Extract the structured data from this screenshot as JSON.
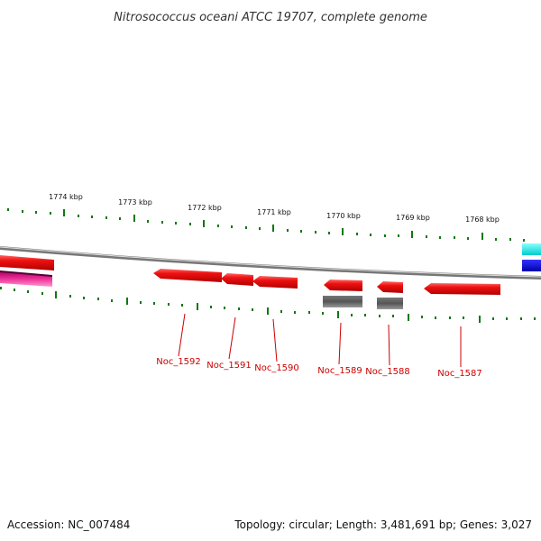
{
  "title": "Nitrosococcus oceani ATCC 19707, complete genome",
  "footer": {
    "accession": "Accession: NC_007484",
    "summary": "Topology: circular; Length: 3,481,691 bp; Genes: 3,027"
  },
  "ruler": {
    "labels": [
      "1774 kbp",
      "1773 kbp",
      "1772 kbp",
      "1771 kbp",
      "1770 kbp",
      "1769 kbp",
      "1768 kbp"
    ]
  },
  "genes": [
    {
      "label": "Noc_1592",
      "strand": "reverse"
    },
    {
      "label": "Noc_1591",
      "strand": "reverse"
    },
    {
      "label": "Noc_1590",
      "strand": "reverse"
    },
    {
      "label": "Noc_1589",
      "strand": "reverse"
    },
    {
      "label": "Noc_1588",
      "strand": "reverse"
    },
    {
      "label": "Noc_1587",
      "strand": "reverse"
    }
  ],
  "colors": {
    "gene_red": "#ee1111",
    "gene_dark": "#555555",
    "backbone": "#888888",
    "tick_green": "#117711",
    "label_red": "#cc0000",
    "cyan": "#00dddd",
    "blue": "#0000dd",
    "magenta": "#cc1188"
  }
}
